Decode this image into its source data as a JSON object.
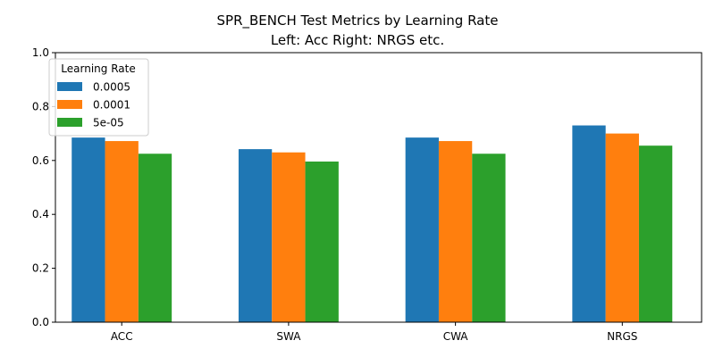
{
  "chart_data": {
    "type": "bar",
    "title": "SPR_BENCH Test Metrics by Learning Rate",
    "subtitle": "Left: Acc  Right: NRGS etc.",
    "xlabel": "",
    "ylabel": "",
    "ylim": [
      0,
      1.0
    ],
    "yticks": [
      0.0,
      0.2,
      0.4,
      0.6,
      0.8,
      1.0
    ],
    "grid": false,
    "legend": {
      "title": "Learning Rate",
      "placement": "upper-left"
    },
    "categories": [
      "ACC",
      "SWA",
      "CWA",
      "NRGS"
    ],
    "series": [
      {
        "name": "0.0005",
        "color": "#1f77b4",
        "values": [
          0.685,
          0.642,
          0.685,
          0.73
        ]
      },
      {
        "name": "0.0001",
        "color": "#ff7f0e",
        "values": [
          0.672,
          0.63,
          0.672,
          0.7
        ]
      },
      {
        "name": "5e-05",
        "color": "#2ca02c",
        "values": [
          0.625,
          0.596,
          0.625,
          0.655
        ]
      }
    ]
  }
}
